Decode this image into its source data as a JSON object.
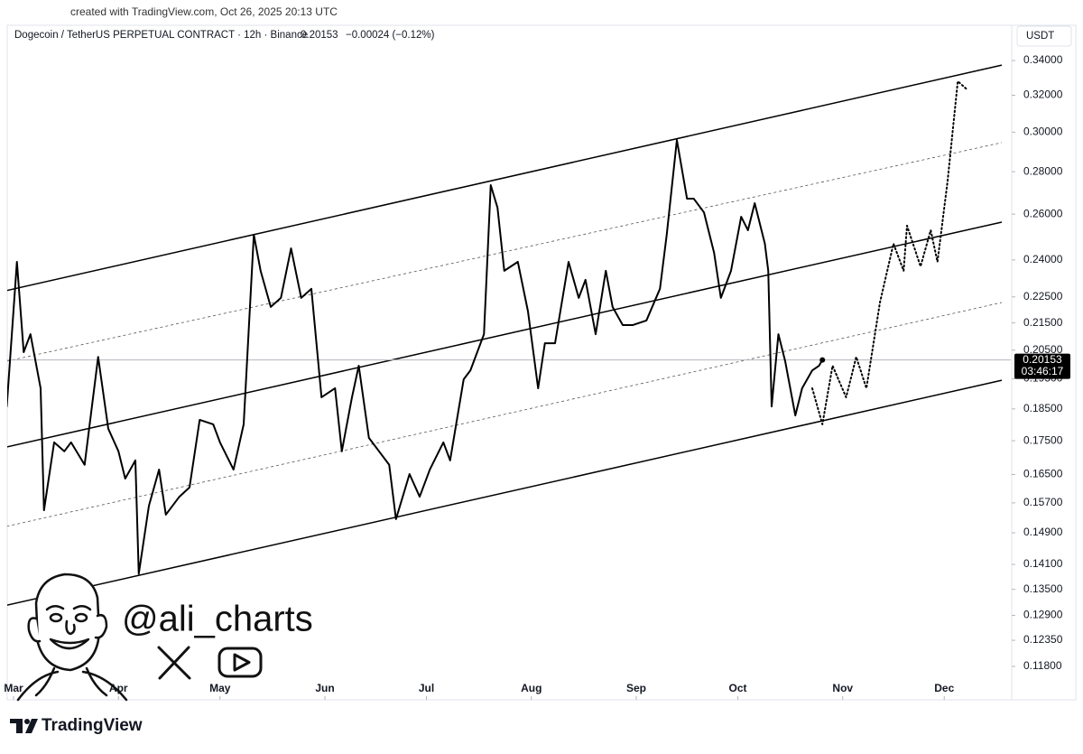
{
  "chart_data": {
    "type": "line",
    "source_note": "created with TradingView.com, Oct 26, 2025 20:13 UTC",
    "title": "Dogecoin / TetherUS PERPETUAL CONTRACT · 12h · Binance",
    "last_price_text": "0.20153",
    "change_text": "−0.00024 (−0.12%)",
    "currency": "USDT",
    "price_label": {
      "value": 0.20153,
      "label": "0.20153"
    },
    "countdown": "03:46:17",
    "watermark": "@ali_charts",
    "brand": "TradingView",
    "log_scale": true,
    "xlim": [
      "2025-02-27",
      "2025-12-20"
    ],
    "xticks": [
      {
        "value": "2025-03-01",
        "label": "Mar"
      },
      {
        "value": "2025-04-01",
        "label": "Apr"
      },
      {
        "value": "2025-05-01",
        "label": "May"
      },
      {
        "value": "2025-06-01",
        "label": "Jun"
      },
      {
        "value": "2025-07-01",
        "label": "Jul"
      },
      {
        "value": "2025-08-01",
        "label": "Aug"
      },
      {
        "value": "2025-09-01",
        "label": "Sep"
      },
      {
        "value": "2025-10-01",
        "label": "Oct"
      },
      {
        "value": "2025-11-01",
        "label": "Nov"
      },
      {
        "value": "2025-12-01",
        "label": "Dec"
      }
    ],
    "ylim": [
      0.1113,
      0.3616
    ],
    "yticks": [
      {
        "value": 0.34,
        "label": "0.34000"
      },
      {
        "value": 0.32,
        "label": "0.32000"
      },
      {
        "value": 0.3,
        "label": "0.30000"
      },
      {
        "value": 0.28,
        "label": "0.28000"
      },
      {
        "value": 0.26,
        "label": "0.26000"
      },
      {
        "value": 0.24,
        "label": "0.24000"
      },
      {
        "value": 0.225,
        "label": "0.22500"
      },
      {
        "value": 0.215,
        "label": "0.21500"
      },
      {
        "value": 0.205,
        "label": "0.20500"
      },
      {
        "value": 0.195,
        "label": "0.19500"
      },
      {
        "value": 0.185,
        "label": "0.18500"
      },
      {
        "value": 0.175,
        "label": "0.17500"
      },
      {
        "value": 0.165,
        "label": "0.16500"
      },
      {
        "value": 0.157,
        "label": "0.15700"
      },
      {
        "value": 0.149,
        "label": "0.14900"
      },
      {
        "value": 0.141,
        "label": "0.14100"
      },
      {
        "value": 0.135,
        "label": "0.13500"
      },
      {
        "value": 0.129,
        "label": "0.12900"
      },
      {
        "value": 0.1235,
        "label": "0.12350"
      },
      {
        "value": 0.118,
        "label": "0.11800"
      }
    ],
    "series": [
      {
        "color": "#000000",
        "style": "solid",
        "x": [
          "2025-02-27",
          "2025-03-02",
          "2025-03-04",
          "2025-03-06",
          "2025-03-09",
          "2025-03-10",
          "2025-03-13",
          "2025-03-16",
          "2025-03-18",
          "2025-03-22",
          "2025-03-26",
          "2025-03-29",
          "2025-04-01",
          "2025-04-03",
          "2025-04-06",
          "2025-04-07",
          "2025-04-10",
          "2025-04-13",
          "2025-04-15",
          "2025-04-19",
          "2025-04-22",
          "2025-04-25",
          "2025-04-29",
          "2025-05-01",
          "2025-05-05",
          "2025-05-08",
          "2025-05-11",
          "2025-05-13",
          "2025-05-16",
          "2025-05-19",
          "2025-05-22",
          "2025-05-25",
          "2025-05-28",
          "2025-05-31",
          "2025-06-04",
          "2025-06-06",
          "2025-06-09",
          "2025-06-11",
          "2025-06-14",
          "2025-06-17",
          "2025-06-20",
          "2025-06-22",
          "2025-06-26",
          "2025-06-29",
          "2025-07-02",
          "2025-07-06",
          "2025-07-08",
          "2025-07-12",
          "2025-07-14",
          "2025-07-18",
          "2025-07-20",
          "2025-07-22",
          "2025-07-24",
          "2025-07-28",
          "2025-07-31",
          "2025-08-03",
          "2025-08-05",
          "2025-08-08",
          "2025-08-12",
          "2025-08-15",
          "2025-08-17",
          "2025-08-20",
          "2025-08-23",
          "2025-08-25",
          "2025-08-28",
          "2025-08-31",
          "2025-09-04",
          "2025-09-08",
          "2025-09-10",
          "2025-09-13",
          "2025-09-16",
          "2025-09-18",
          "2025-09-21",
          "2025-09-24",
          "2025-09-26",
          "2025-09-29",
          "2025-10-02",
          "2025-10-04",
          "2025-10-06",
          "2025-10-09",
          "2025-10-10",
          "2025-10-11",
          "2025-10-13",
          "2025-10-15",
          "2025-10-18",
          "2025-10-20",
          "2025-10-23",
          "2025-10-25",
          "2025-10-26"
        ],
        "values": [
          0.1858,
          0.2392,
          0.2043,
          0.2108,
          0.1918,
          0.155,
          0.1745,
          0.1718,
          0.1745,
          0.1678,
          0.2026,
          0.1787,
          0.1718,
          0.1638,
          0.1691,
          0.1387,
          0.1562,
          0.1664,
          0.1538,
          0.1587,
          0.1613,
          0.1815,
          0.1801,
          0.1745,
          0.1664,
          0.1801,
          0.2508,
          0.2355,
          0.2211,
          0.2246,
          0.2449,
          0.2246,
          0.2282,
          0.1888,
          0.1918,
          0.1718,
          0.1888,
          0.1995,
          0.1759,
          0.1718,
          0.1678,
          0.1526,
          0.1651,
          0.1587,
          0.1664,
          0.1745,
          0.1691,
          0.1948,
          0.1979,
          0.2108,
          0.2735,
          0.2629,
          0.2355,
          0.2392,
          0.2194,
          0.1918,
          0.2075,
          0.2075,
          0.2392,
          0.2246,
          0.2318,
          0.2108,
          0.2355,
          0.2211,
          0.2142,
          0.2142,
          0.2159,
          0.2282,
          0.2508,
          0.2959,
          0.2671,
          0.2671,
          0.2608,
          0.243,
          0.2246,
          0.2355,
          0.2588,
          0.2528,
          0.265,
          0.2469,
          0.2355,
          0.1858,
          0.2108,
          0.2011,
          0.1829,
          0.1918,
          0.1979,
          0.1995,
          0.20153
        ]
      },
      {
        "color": "#000000",
        "style": "dotted",
        "x": [
          "2025-10-23",
          "2025-10-26",
          "2025-10-29",
          "2025-11-02",
          "2025-11-05",
          "2025-11-08",
          "2025-11-12",
          "2025-11-16",
          "2025-11-19",
          "2025-11-20",
          "2025-11-24",
          "2025-11-27",
          "2025-11-29",
          "2025-12-02",
          "2025-12-05",
          "2025-12-08"
        ],
        "values": [
          0.1918,
          0.1801,
          0.1995,
          0.1888,
          0.2026,
          0.1918,
          0.2228,
          0.2469,
          0.2355,
          0.2548,
          0.2373,
          0.2528,
          0.2392,
          0.2756,
          0.3279,
          0.3228
        ]
      }
    ],
    "channel_lines": [
      {
        "style": "solid",
        "x": [
          "2025-02-27",
          "2025-12-18"
        ],
        "values": [
          0.2275,
          0.3373
        ]
      },
      {
        "style": "solid",
        "x": [
          "2025-02-27",
          "2025-12-18"
        ],
        "values": [
          0.1731,
          0.2564
        ]
      },
      {
        "style": "solid",
        "x": [
          "2025-02-27",
          "2025-12-18"
        ],
        "values": [
          0.1313,
          0.1945
        ]
      },
      {
        "style": "dashed",
        "x": [
          "2025-02-27",
          "2025-12-18"
        ],
        "values": [
          0.2011,
          0.2946
        ]
      },
      {
        "style": "dashed",
        "x": [
          "2025-02-27",
          "2025-12-18"
        ],
        "values": [
          0.1507,
          0.2228
        ]
      }
    ]
  }
}
